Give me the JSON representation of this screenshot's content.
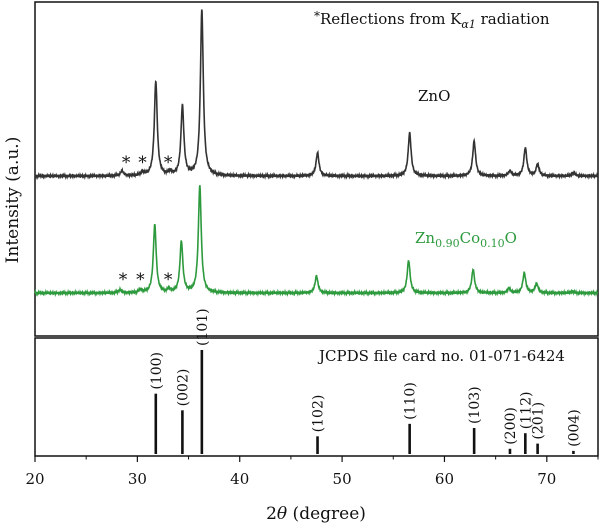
{
  "chart_data": {
    "type": "line",
    "xlabel_main": "2",
    "xlabel_theta": "θ",
    "xlabel_unit": " (degree)",
    "ylabel": "Intensity (a.u.)",
    "xlim": [
      20,
      75
    ],
    "xticks": [
      20,
      30,
      40,
      50,
      60,
      70
    ],
    "top_annotation": {
      "star": "*",
      "prefix": "Reflections from K",
      "sub": "α1",
      "suffix": " radiation"
    },
    "series": [
      {
        "name": "ZnO",
        "name_parts": [
          "ZnO"
        ],
        "color": "#333333",
        "peaks": [
          [
            28.5,
            0.03
          ],
          [
            30.5,
            0.02
          ],
          [
            31.8,
            0.57
          ],
          [
            33.2,
            0.02
          ],
          [
            34.4,
            0.42
          ],
          [
            36.3,
            1.0
          ],
          [
            47.6,
            0.14
          ],
          [
            56.6,
            0.26
          ],
          [
            62.9,
            0.21
          ],
          [
            66.4,
            0.03
          ],
          [
            67.9,
            0.17
          ],
          [
            69.1,
            0.07
          ],
          [
            72.6,
            0.02
          ]
        ],
        "stars_x": [
          28.9,
          30.5,
          33.0
        ]
      },
      {
        "name": "Zn0.90Co0.10O",
        "name_parts": [
          "Zn",
          "0.90",
          "Co",
          "0.10",
          "O"
        ],
        "color": "#2e9a3e",
        "peaks": [
          [
            28.3,
            0.02
          ],
          [
            30.3,
            0.02
          ],
          [
            31.7,
            0.44
          ],
          [
            33.1,
            0.02
          ],
          [
            34.3,
            0.33
          ],
          [
            36.1,
            0.69
          ],
          [
            47.5,
            0.11
          ],
          [
            56.5,
            0.21
          ],
          [
            62.8,
            0.15
          ],
          [
            66.3,
            0.03
          ],
          [
            67.8,
            0.13
          ],
          [
            69.0,
            0.06
          ],
          [
            72.5,
            0.01
          ]
        ],
        "stars_x": [
          28.6,
          30.3,
          33.0
        ]
      }
    ],
    "reference": {
      "label": "JCPDS file card no. 01-071-6424",
      "lines": [
        {
          "x": 31.8,
          "rel": 0.58,
          "hkl": "(100)"
        },
        {
          "x": 34.4,
          "rel": 0.42,
          "hkl": "(002)"
        },
        {
          "x": 36.3,
          "rel": 1.0,
          "hkl": "(101)"
        },
        {
          "x": 47.6,
          "rel": 0.17,
          "hkl": "(102)"
        },
        {
          "x": 56.6,
          "rel": 0.29,
          "hkl": "(110)"
        },
        {
          "x": 62.9,
          "rel": 0.25,
          "hkl": "(103)"
        },
        {
          "x": 66.4,
          "rel": 0.05,
          "hkl": "(200)"
        },
        {
          "x": 67.9,
          "rel": 0.2,
          "hkl": "(112)"
        },
        {
          "x": 69.1,
          "rel": 0.1,
          "hkl": "(201)"
        },
        {
          "x": 72.6,
          "rel": 0.03,
          "hkl": "(004)"
        }
      ]
    }
  }
}
